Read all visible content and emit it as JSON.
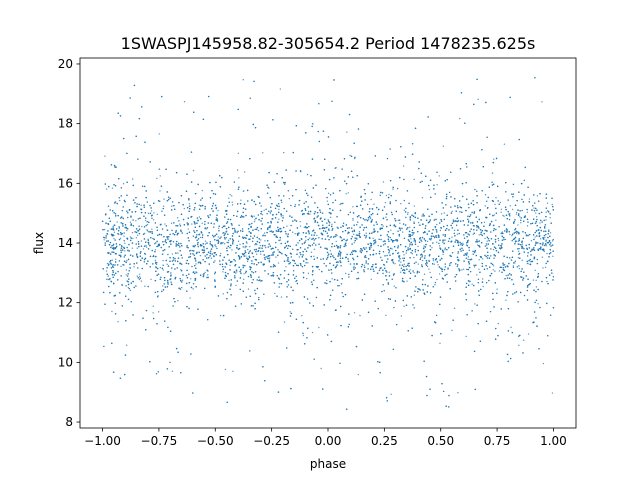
{
  "chart_data": {
    "type": "scatter",
    "title": "1SWASPJ145958.82-305654.2 Period 1478235.625s",
    "xlabel": "phase",
    "ylabel": "flux",
    "xlim": [
      -1.1,
      1.1
    ],
    "ylim": [
      7.8,
      20.2
    ],
    "xticks": [
      -1.0,
      -0.75,
      -0.5,
      -0.25,
      0.0,
      0.25,
      0.5,
      0.75,
      1.0
    ],
    "xtick_labels": [
      "−1.00",
      "−0.75",
      "−0.50",
      "−0.25",
      "0.00",
      "0.25",
      "0.50",
      "0.75",
      "1.00"
    ],
    "yticks": [
      8,
      10,
      12,
      14,
      16,
      18,
      20
    ],
    "ytick_labels": [
      "8",
      "10",
      "12",
      "14",
      "16",
      "18",
      "20"
    ],
    "grid": false,
    "marker_color": "#1f77b4",
    "phase_range": [
      -1.0,
      1.0
    ],
    "flux_center": 14.0,
    "flux_core_spread": 0.9,
    "flux_min": 8.4,
    "flux_max": 19.6
  }
}
